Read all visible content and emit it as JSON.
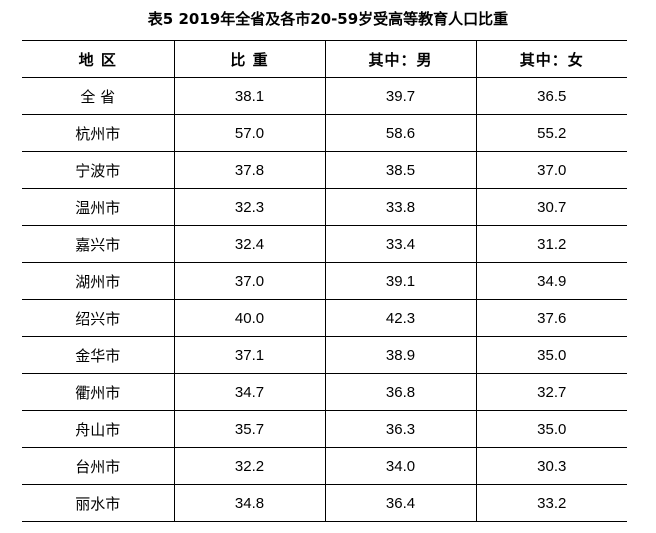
{
  "title": "表5  2019年全省及各市20-59岁受高等教育人口比重",
  "table": {
    "headers": [
      "地 区",
      "比 重",
      "其中：男",
      "其中：女"
    ],
    "rows": [
      [
        "全 省",
        "38.1",
        "39.7",
        "36.5"
      ],
      [
        "杭州市",
        "57.0",
        "58.6",
        "55.2"
      ],
      [
        "宁波市",
        "37.8",
        "38.5",
        "37.0"
      ],
      [
        "温州市",
        "32.3",
        "33.8",
        "30.7"
      ],
      [
        "嘉兴市",
        "32.4",
        "33.4",
        "31.2"
      ],
      [
        "湖州市",
        "37.0",
        "39.1",
        "34.9"
      ],
      [
        "绍兴市",
        "40.0",
        "42.3",
        "37.6"
      ],
      [
        "金华市",
        "37.1",
        "38.9",
        "35.0"
      ],
      [
        "衢州市",
        "34.7",
        "36.8",
        "32.7"
      ],
      [
        "舟山市",
        "35.7",
        "36.3",
        "35.0"
      ],
      [
        "台州市",
        "32.2",
        "34.0",
        "30.3"
      ],
      [
        "丽水市",
        "34.8",
        "36.4",
        "33.2"
      ]
    ]
  }
}
